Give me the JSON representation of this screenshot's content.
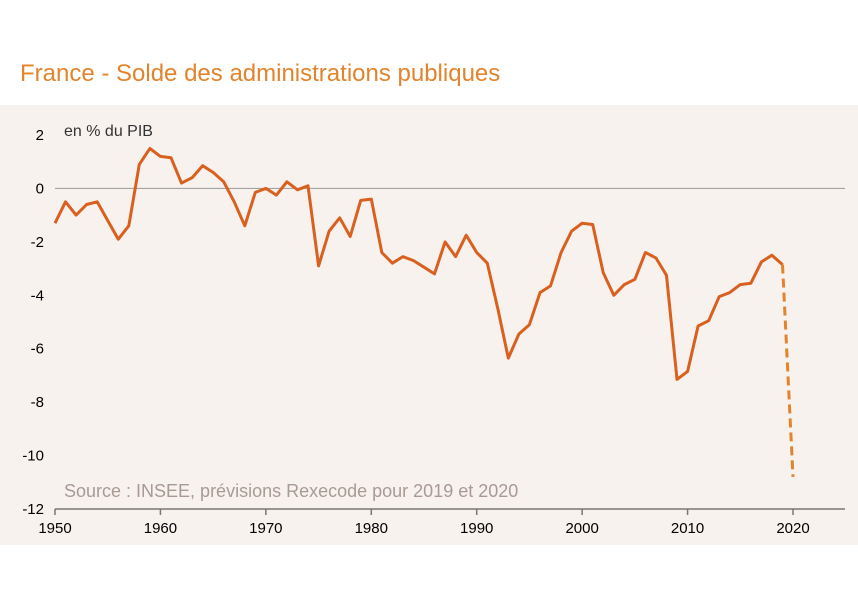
{
  "title": "France - Solde des administrations publiques",
  "colors": {
    "line": "#d9601f",
    "title": "#e3832c",
    "panel": "#f8f2ef"
  },
  "chart_data": {
    "type": "line",
    "title": "France - Solde des administrations publiques",
    "ylabel": "en % du PIB",
    "xlabel": "",
    "source": "Source : INSEE, prévisions Rexecode pour 2019 et 2020",
    "xlim": [
      1950,
      2025
    ],
    "ylim": [
      -12,
      2
    ],
    "xticks": [
      1950,
      1960,
      1970,
      1980,
      1990,
      2000,
      2010,
      2020
    ],
    "yticks": [
      2,
      0,
      -2,
      -4,
      -6,
      -8,
      -10,
      -12
    ],
    "grid": false,
    "series": [
      {
        "style": "solid",
        "x": [
          1950,
          1951,
          1952,
          1953,
          1954,
          1955,
          1956,
          1957,
          1958,
          1959,
          1960,
          1961,
          1962,
          1963,
          1964,
          1965,
          1966,
          1967,
          1968,
          1969,
          1970,
          1971,
          1972,
          1973,
          1974,
          1975,
          1976,
          1977,
          1978,
          1979,
          1980,
          1981,
          1982,
          1983,
          1984,
          1985,
          1986,
          1987,
          1988,
          1989,
          1990,
          1991,
          1992,
          1993,
          1994,
          1995,
          1996,
          1997,
          1998,
          1999,
          2000,
          2001,
          2002,
          2003,
          2004,
          2005,
          2006,
          2007,
          2008,
          2009,
          2010,
          2011,
          2012,
          2013,
          2014,
          2015,
          2016,
          2017,
          2018,
          2019
        ],
        "y": [
          -1.3,
          -0.5,
          -1.0,
          -0.6,
          -0.5,
          -1.2,
          -1.9,
          -1.4,
          0.9,
          1.5,
          1.2,
          1.15,
          0.2,
          0.4,
          0.85,
          0.6,
          0.25,
          -0.5,
          -1.4,
          -0.15,
          0.0,
          -0.25,
          0.25,
          -0.05,
          0.1,
          -2.9,
          -1.6,
          -1.1,
          -1.8,
          -0.45,
          -0.4,
          -2.4,
          -2.8,
          -2.55,
          -2.7,
          -2.95,
          -3.2,
          -2.0,
          -2.55,
          -1.75,
          -2.4,
          -2.8,
          -4.5,
          -6.35,
          -5.45,
          -5.1,
          -3.9,
          -3.65,
          -2.4,
          -1.6,
          -1.3,
          -1.35,
          -3.15,
          -4.0,
          -3.6,
          -3.4,
          -2.4,
          -2.6,
          -3.25,
          -7.15,
          -6.85,
          -5.15,
          -4.95,
          -4.05,
          -3.9,
          -3.6,
          -3.55,
          -2.75,
          -2.5,
          -2.85
        ]
      },
      {
        "style": "dashed",
        "x": [
          2019,
          2020
        ],
        "y": [
          -2.85,
          -10.8
        ]
      }
    ]
  }
}
